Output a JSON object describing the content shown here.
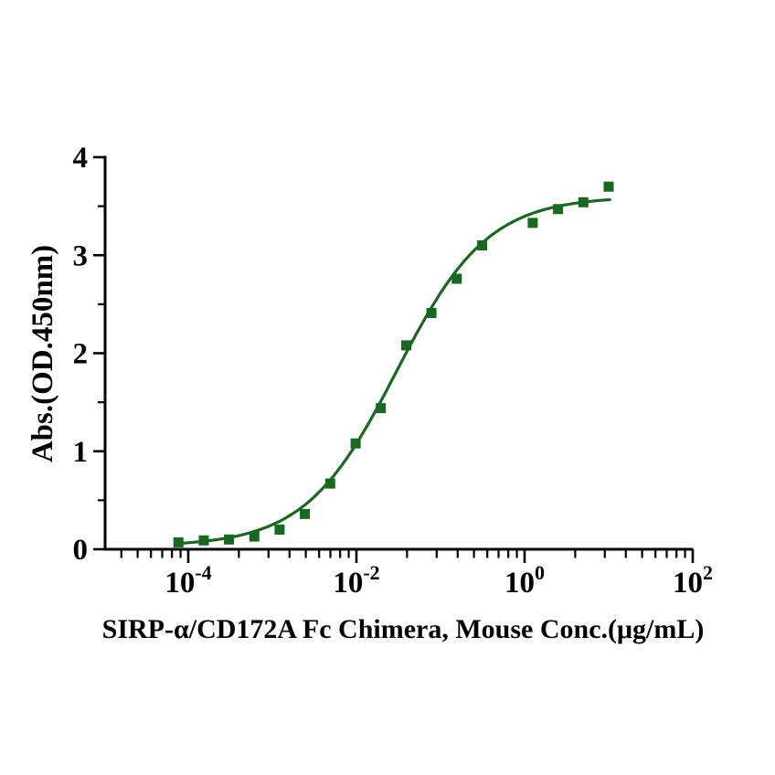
{
  "figure": {
    "background_color": "#ffffff"
  },
  "chart_data": {
    "type": "scatter",
    "title": "",
    "xlabel": "SIRP-α/CD172A Fc Chimera, Mouse Conc.(μg/mL)",
    "ylabel": "Abs.(OD.450nm)",
    "x_scale": "log10",
    "xlim_log10": [
      -5,
      2
    ],
    "ylim": [
      0,
      4
    ],
    "grid": false,
    "legend": "none",
    "axis_color": "#000000",
    "x_major_ticks": [
      {
        "log10": -4,
        "base": "10",
        "exponent": "-4"
      },
      {
        "log10": -2,
        "base": "10",
        "exponent": "-2"
      },
      {
        "log10": 0,
        "base": "10",
        "exponent": "0"
      },
      {
        "log10": 2,
        "base": "10",
        "exponent": "2"
      }
    ],
    "x_minor_tick_period_starts_log10": [
      -6,
      -4,
      -2,
      0
    ],
    "x_minor_tick_style": "antilog-within-2-decade-period",
    "y_major_ticks": [
      {
        "value": 0,
        "label": "0"
      },
      {
        "value": 1,
        "label": "1"
      },
      {
        "value": 2,
        "label": "2"
      },
      {
        "value": 3,
        "label": "3"
      },
      {
        "value": 4,
        "label": "4"
      }
    ],
    "y_minor_tick_values": [
      0.5,
      1.5,
      2.5,
      3.5
    ],
    "series": [
      {
        "marker": "filled-square",
        "color": "#17691f",
        "marker_size_px": 11,
        "points": [
          [
            7.63e-05,
            0.07
          ],
          [
            0.000153,
            0.09
          ],
          [
            0.000305,
            0.1
          ],
          [
            0.00061,
            0.13
          ],
          [
            0.00122,
            0.2
          ],
          [
            0.00244,
            0.36
          ],
          [
            0.00488,
            0.67
          ],
          [
            0.00977,
            1.08
          ],
          [
            0.0195,
            1.44
          ],
          [
            0.0391,
            2.08
          ],
          [
            0.0781,
            2.41
          ],
          [
            0.156,
            2.76
          ],
          [
            0.313,
            3.1
          ],
          [
            1.25,
            3.33
          ],
          [
            2.5,
            3.47
          ],
          [
            5,
            3.54
          ],
          [
            10,
            3.7
          ]
        ]
      }
    ],
    "fit_curve": {
      "model": "4PL",
      "bottom": 0.03,
      "top": 3.6,
      "ec50": 0.03,
      "hill": 0.8,
      "x_range": [
        7.2e-05,
        10.3
      ],
      "color": "#17691f",
      "stroke_width_px": 3.2
    }
  }
}
